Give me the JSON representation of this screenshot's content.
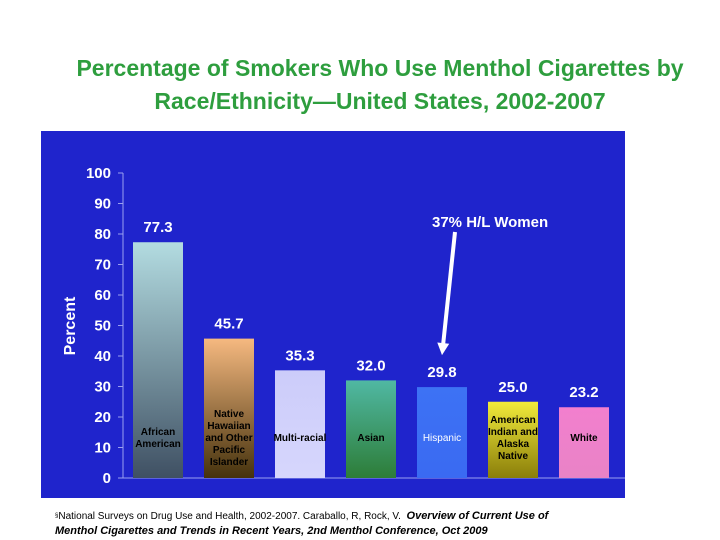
{
  "title": {
    "line1": "Percentage of Smokers Who Use Menthol Cigarettes by",
    "line2": "Race/Ethnicity—United States, 2002-2007"
  },
  "chart_data": {
    "type": "bar",
    "title": "Percentage of Smokers Who Use Menthol Cigarettes by Race/Ethnicity—United States, 2002-2007",
    "ylabel": "Percent",
    "xlabel": "",
    "ylim": [
      0,
      100
    ],
    "yticks": [
      0,
      10,
      20,
      30,
      40,
      50,
      60,
      70,
      80,
      90,
      100
    ],
    "grid": false,
    "background": "#1f24cc",
    "categories": [
      "African American",
      "Native Hawaiian and Other Pacific Islander",
      "Multi-racial",
      "Asian",
      "Hispanic",
      "American Indian and Alaska Native",
      "White"
    ],
    "category_lines": [
      [
        "African",
        "American"
      ],
      [
        "Native",
        "Hawaiian",
        "and Other",
        "Pacific",
        "Islander"
      ],
      [
        "Multi-racial"
      ],
      [
        "Asian"
      ],
      [
        "Hispanic"
      ],
      [
        "American",
        "Indian and",
        "Alaska",
        "Native"
      ],
      [
        "White"
      ]
    ],
    "values": [
      77.3,
      45.7,
      35.3,
      32.0,
      29.8,
      25.0,
      23.2
    ],
    "value_labels": [
      "77.3",
      "45.7",
      "35.3",
      "32.0",
      "29.8",
      "25.0",
      "23.2"
    ],
    "bar_colors_top": [
      "#b3dce1",
      "#f6b980",
      "#ccccfa",
      "#50b8a3",
      "#3d72f4",
      "#f2eb3b",
      "#f27fce"
    ],
    "bar_colors_bottom": [
      "#3f5063",
      "#45320d",
      "#d6d6fc",
      "#2d7d38",
      "#3a6af2",
      "#8a7e0a",
      "#e983c6"
    ],
    "annotation": {
      "text": "37% H/L Women",
      "target_category": "Hispanic"
    }
  },
  "source": {
    "marker": "§",
    "text": "National Surveys on Drug Use and Health, 2002-2007. Caraballo, R, Rock, V.",
    "italic_part1": "Overview of Current Use of",
    "italic_part2a": "Menthol Cigarettes and Trends in Recent Years, 2",
    "italic_sup": "nd",
    "italic_part2b": " Menthol Conference, Oct 2009"
  }
}
